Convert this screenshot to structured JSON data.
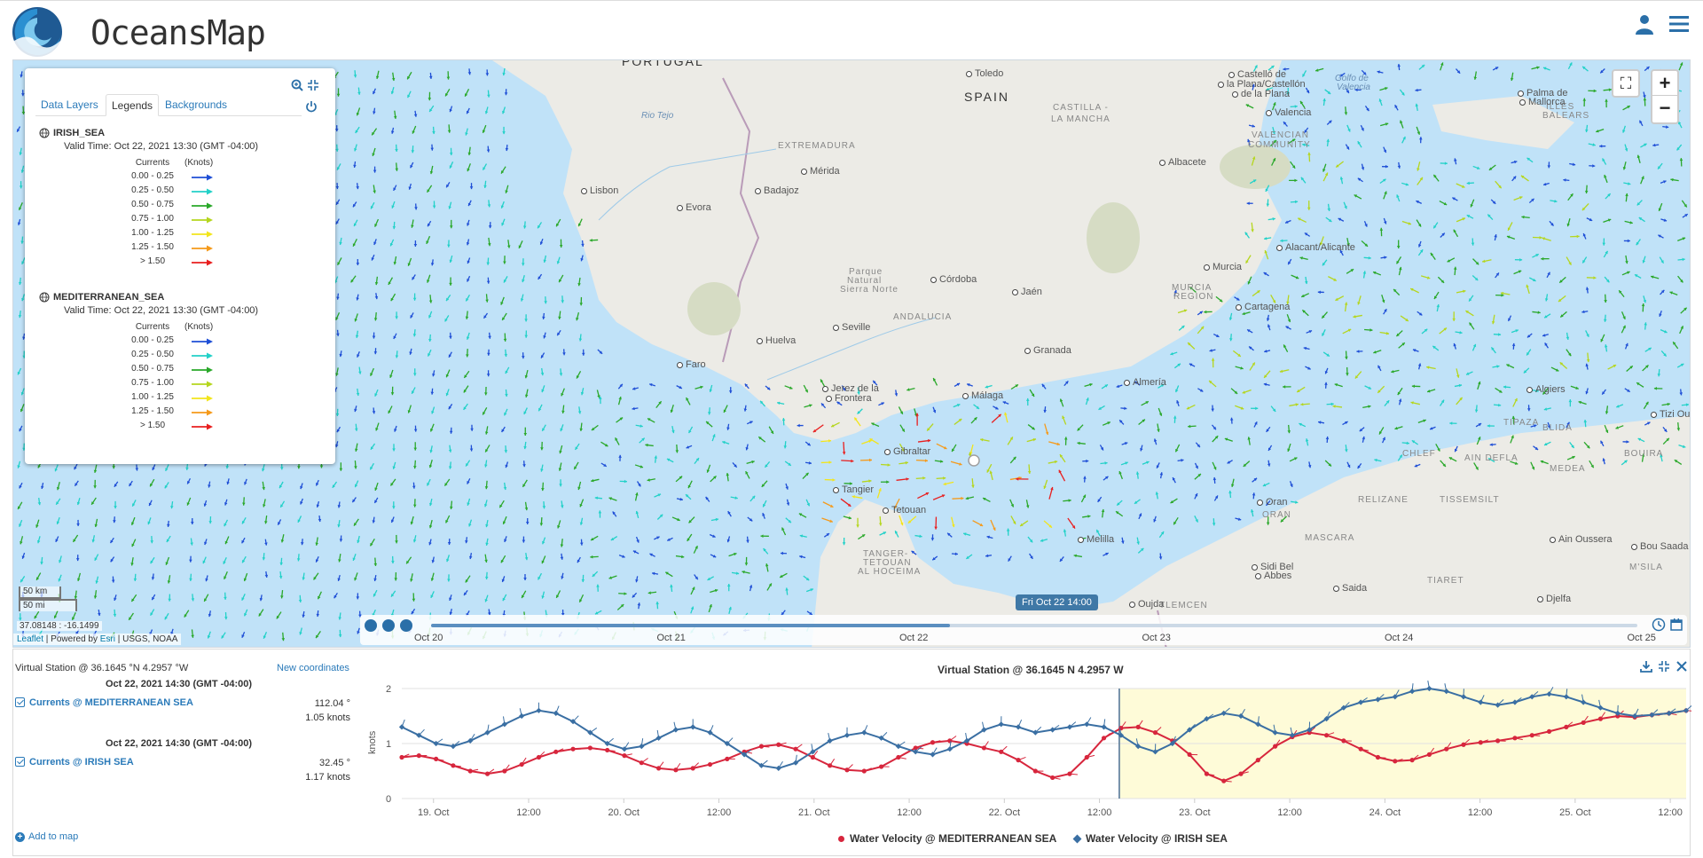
{
  "app": {
    "title": "OceansMap"
  },
  "map": {
    "labels": {
      "countries": [
        {
          "name": "PORTUGAL",
          "x": 700,
          "y": 60
        },
        {
          "name": "SPAIN",
          "x": 1086,
          "y": 100
        }
      ],
      "regions": [
        {
          "name": "EXTREMADURA",
          "x": 876,
          "y": 158
        },
        {
          "name": "CASTILLA -",
          "x": 1186,
          "y": 115
        },
        {
          "name": "LA MANCHA",
          "x": 1184,
          "y": 128
        },
        {
          "name": "ANDALUCIA",
          "x": 1006,
          "y": 351
        },
        {
          "name": "VALENCIAN",
          "x": 1410,
          "y": 146
        },
        {
          "name": "COMMUNITY",
          "x": 1406,
          "y": 157
        },
        {
          "name": "MURCIA",
          "x": 1320,
          "y": 318
        },
        {
          "name": "REGION",
          "x": 1322,
          "y": 328
        },
        {
          "name": "ILLES",
          "x": 1742,
          "y": 114
        },
        {
          "name": "BALEARS",
          "x": 1738,
          "y": 124
        },
        {
          "name": "TANGER-",
          "x": 972,
          "y": 618
        },
        {
          "name": "TETOUAN",
          "x": 972,
          "y": 628
        },
        {
          "name": "AL HOCEIMA",
          "x": 966,
          "y": 638
        },
        {
          "name": "TLEMCEN",
          "x": 1306,
          "y": 676
        },
        {
          "name": "MASCARA",
          "x": 1470,
          "y": 600
        },
        {
          "name": "TIARET",
          "x": 1608,
          "y": 648
        },
        {
          "name": "RELIZANE",
          "x": 1530,
          "y": 557
        },
        {
          "name": "TISSEMSILT",
          "x": 1622,
          "y": 557
        },
        {
          "name": "CHLEF",
          "x": 1580,
          "y": 505
        },
        {
          "name": "AIN DEFLA",
          "x": 1650,
          "y": 510
        },
        {
          "name": "MEDEA",
          "x": 1746,
          "y": 522
        },
        {
          "name": "BOUIRA",
          "x": 1830,
          "y": 505
        },
        {
          "name": "BLIDA",
          "x": 1738,
          "y": 476
        },
        {
          "name": "TIPAZA",
          "x": 1694,
          "y": 470
        },
        {
          "name": "ORAN",
          "x": 1422,
          "y": 574
        },
        {
          "name": "M'SILA",
          "x": 1836,
          "y": 633
        }
      ],
      "cities": [
        {
          "name": "Toledo",
          "x": 1088,
          "y": 76
        },
        {
          "name": "Lisbon",
          "x": 654,
          "y": 208
        },
        {
          "name": "Evora",
          "x": 762,
          "y": 227
        },
        {
          "name": "Mérida",
          "x": 902,
          "y": 186
        },
        {
          "name": "Badajoz",
          "x": 850,
          "y": 208
        },
        {
          "name": "Córdoba",
          "x": 1048,
          "y": 308
        },
        {
          "name": "Jaén",
          "x": 1140,
          "y": 322
        },
        {
          "name": "Seville",
          "x": 938,
          "y": 362
        },
        {
          "name": "Huelva",
          "x": 852,
          "y": 377
        },
        {
          "name": "Faro",
          "x": 762,
          "y": 404
        },
        {
          "name": "Granada",
          "x": 1154,
          "y": 388
        },
        {
          "name": "Jerez de la",
          "x": 926,
          "y": 431
        },
        {
          "name": "Frontera",
          "x": 930,
          "y": 442
        },
        {
          "name": "Málaga",
          "x": 1084,
          "y": 439
        },
        {
          "name": "Almería",
          "x": 1266,
          "y": 424
        },
        {
          "name": "Albacete",
          "x": 1306,
          "y": 176
        },
        {
          "name": "Murcia",
          "x": 1356,
          "y": 294
        },
        {
          "name": "Cartagena",
          "x": 1392,
          "y": 339
        },
        {
          "name": "Alacant/Alicante",
          "x": 1438,
          "y": 272
        },
        {
          "name": "Valencia",
          "x": 1426,
          "y": 120
        },
        {
          "name": "Castelló de",
          "x": 1384,
          "y": 77
        },
        {
          "name": "la Plana/Castellón",
          "x": 1372,
          "y": 88
        },
        {
          "name": "de la Plana",
          "x": 1388,
          "y": 99
        },
        {
          "name": "Palma de",
          "x": 1710,
          "y": 98
        },
        {
          "name": "Mallorca",
          "x": 1712,
          "y": 108
        },
        {
          "name": "Gibraltar",
          "x": 996,
          "y": 502
        },
        {
          "name": "Tangier",
          "x": 938,
          "y": 545
        },
        {
          "name": "Tetouan",
          "x": 994,
          "y": 568
        },
        {
          "name": "Melilla",
          "x": 1214,
          "y": 601
        },
        {
          "name": "Oran",
          "x": 1416,
          "y": 559
        },
        {
          "name": "Sidi Bel",
          "x": 1410,
          "y": 632
        },
        {
          "name": "Abbes",
          "x": 1414,
          "y": 642
        },
        {
          "name": "Saida",
          "x": 1502,
          "y": 656
        },
        {
          "name": "Oujda",
          "x": 1272,
          "y": 674
        },
        {
          "name": "Algiers",
          "x": 1720,
          "y": 432
        },
        {
          "name": "Tizi Ouzou",
          "x": 1860,
          "y": 460
        },
        {
          "name": "Ain Oussera",
          "x": 1746,
          "y": 601
        },
        {
          "name": "Bou Saada",
          "x": 1838,
          "y": 609
        },
        {
          "name": "Djelfa",
          "x": 1732,
          "y": 668
        }
      ],
      "water": [
        {
          "name": "Rio Tejo",
          "x": 722,
          "y": 124
        },
        {
          "name": "Golfo de",
          "x": 1504,
          "y": 82
        },
        {
          "name": "Valencia",
          "x": 1506,
          "y": 92
        }
      ],
      "parks": [
        {
          "name": "Parque",
          "x": 956,
          "y": 300
        },
        {
          "name": "Natural",
          "x": 954,
          "y": 310
        },
        {
          "name": "Sierra Norte",
          "x": 946,
          "y": 320
        }
      ]
    },
    "zoom_in": "+",
    "zoom_out": "−",
    "scale_km": "50 km",
    "scale_mi": "50 mi",
    "coords": "37.08148 : -16.1499",
    "attribution": {
      "leaflet": "Leaflet",
      "sep1": " | Powered by ",
      "esri": "Esri",
      "rest": " | USGS, NOAA"
    }
  },
  "legend_panel": {
    "tabs": [
      {
        "label": "Data Layers",
        "active": false
      },
      {
        "label": "Legends",
        "active": true
      },
      {
        "label": "Backgrounds",
        "active": false
      }
    ],
    "layers": [
      {
        "name": "IRISH_SEA",
        "valid_time": "Valid Time: Oct 22, 2021 13:30 (GMT -04:00)",
        "header_variable": "Currents",
        "header_units": "(Knots)",
        "rows": [
          {
            "range": "0.00 - 0.25",
            "color": "#1f4fd6"
          },
          {
            "range": "0.25 - 0.50",
            "color": "#22d1c8"
          },
          {
            "range": "0.50 - 0.75",
            "color": "#2aa82a"
          },
          {
            "range": "0.75 - 1.00",
            "color": "#b5d61e"
          },
          {
            "range": "1.00 - 1.25",
            "color": "#f2e51b"
          },
          {
            "range": "1.25 - 1.50",
            "color": "#f59a1a"
          },
          {
            "range": "> 1.50",
            "color": "#e81f1f"
          }
        ]
      },
      {
        "name": "MEDITERRANEAN_SEA",
        "valid_time": "Valid Time: Oct 22, 2021 13:30 (GMT -04:00)",
        "header_variable": "Currents",
        "header_units": "(Knots)",
        "rows": [
          {
            "range": "0.00 - 0.25",
            "color": "#1f4fd6"
          },
          {
            "range": "0.25 - 0.50",
            "color": "#22d1c8"
          },
          {
            "range": "0.50 - 0.75",
            "color": "#2aa82a"
          },
          {
            "range": "0.75 - 1.00",
            "color": "#b5d61e"
          },
          {
            "range": "1.00 - 1.25",
            "color": "#f2e51b"
          },
          {
            "range": "1.25 - 1.50",
            "color": "#f59a1a"
          },
          {
            "range": "> 1.50",
            "color": "#e81f1f"
          }
        ]
      }
    ]
  },
  "timeline": {
    "current_label": "Fri Oct 22 14:00",
    "progress": 0.43,
    "ticks": [
      "Oct 20",
      "Oct 21",
      "Oct 22",
      "Oct 23",
      "Oct 24",
      "Oct 25"
    ]
  },
  "station": {
    "title": "Virtual Station @ 36.1645 °N 4.2957 °W",
    "new_coords": "New coordinates",
    "readings": [
      {
        "time": "Oct 22, 2021 14:30 (GMT -04:00)",
        "name": "Currents @ MEDITERRANEAN SEA",
        "direction": "112.04 °",
        "speed": "1.05 knots"
      },
      {
        "time": "Oct 22, 2021 14:30 (GMT -04:00)",
        "name": "Currents @ IRISH SEA",
        "direction": "32.45 °",
        "speed": "1.17 knots"
      }
    ],
    "add_to_map": "Add to map"
  },
  "chart_data": {
    "type": "line",
    "title": "Virtual Station @ 36.1645 N 4.2957 W",
    "ylabel": "knots",
    "ylim": [
      0,
      2
    ],
    "yticks": [
      "0",
      "1",
      "2"
    ],
    "x_range_hours": [
      -30,
      130
    ],
    "x_tick_labels": [
      {
        "label": "19. Oct",
        "h": 0
      },
      {
        "label": "12:00",
        "h": 12
      },
      {
        "label": "20. Oct",
        "h": 24
      },
      {
        "label": "12:00",
        "h": 36
      },
      {
        "label": "21. Oct",
        "h": 48
      },
      {
        "label": "12:00",
        "h": 60
      },
      {
        "label": "22. Oct",
        "h": 72
      },
      {
        "label": "12:00",
        "h": 84
      },
      {
        "label": "23. Oct",
        "h": 96
      },
      {
        "label": "12:00",
        "h": 108
      },
      {
        "label": "24. Oct",
        "h": 120
      },
      {
        "label": "12:00",
        "h": 132
      },
      {
        "label": "25. Oct",
        "h": 144
      },
      {
        "label": "12:00",
        "h": 156
      }
    ],
    "x_start_label_hour": -4,
    "x_end_hour": 158,
    "now_hour": 86.5,
    "forecast_start_hour": 86.5,
    "series": [
      {
        "name": "Water Velocity @ MEDITERRANEAN SEA",
        "color": "#d7263d",
        "values": [
          0.75,
          0.78,
          0.72,
          0.6,
          0.5,
          0.45,
          0.5,
          0.62,
          0.75,
          0.85,
          0.9,
          0.92,
          0.88,
          0.78,
          0.65,
          0.55,
          0.52,
          0.55,
          0.62,
          0.72,
          0.85,
          0.95,
          0.98,
          0.9,
          0.75,
          0.6,
          0.52,
          0.5,
          0.58,
          0.75,
          0.92,
          1.02,
          1.05,
          1.0,
          0.92,
          0.85,
          0.7,
          0.5,
          0.38,
          0.45,
          0.75,
          1.1,
          1.28,
          1.3,
          1.2,
          1.05,
          0.8,
          0.45,
          0.32,
          0.45,
          0.7,
          0.95,
          1.12,
          1.2,
          1.15,
          1.05,
          0.9,
          0.75,
          0.68,
          0.7,
          0.8,
          0.9,
          0.98,
          1.02,
          1.05,
          1.1,
          1.15,
          1.22,
          1.3,
          1.38,
          1.45,
          1.5,
          1.48,
          1.52,
          1.55,
          1.6
        ]
      },
      {
        "name": "Water Velocity @ IRISH SEA",
        "color": "#3a6fa3",
        "values": [
          1.3,
          1.15,
          1.0,
          0.95,
          1.05,
          1.2,
          1.35,
          1.5,
          1.6,
          1.55,
          1.4,
          1.2,
          1.0,
          0.9,
          0.95,
          1.1,
          1.25,
          1.3,
          1.2,
          1.0,
          0.8,
          0.6,
          0.55,
          0.65,
          0.85,
          1.05,
          1.15,
          1.2,
          1.1,
          0.95,
          0.85,
          0.8,
          0.9,
          1.05,
          1.25,
          1.35,
          1.3,
          1.2,
          1.25,
          1.3,
          1.35,
          1.3,
          1.15,
          0.95,
          0.85,
          1.0,
          1.25,
          1.45,
          1.55,
          1.5,
          1.35,
          1.2,
          1.15,
          1.25,
          1.45,
          1.65,
          1.75,
          1.8,
          1.85,
          1.95,
          2.0,
          1.95,
          1.85,
          1.75,
          1.7,
          1.75,
          1.85,
          1.9,
          1.85,
          1.75,
          1.65,
          1.55,
          1.5,
          1.52,
          1.55,
          1.6
        ]
      }
    ]
  }
}
